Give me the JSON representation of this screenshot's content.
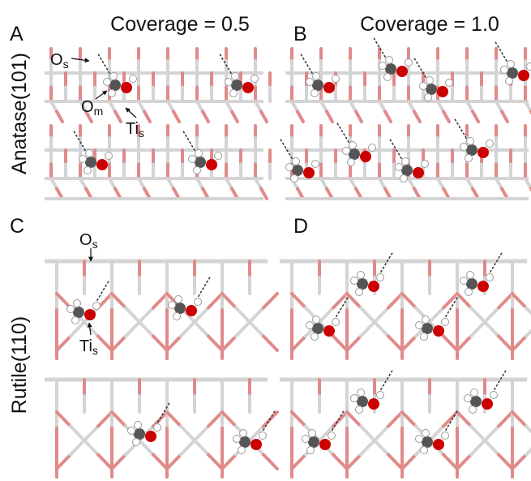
{
  "panels": [
    {
      "letter": "A",
      "title": "Coverage = 0.5",
      "row_label": "Anatase(101)",
      "labels": [
        {
          "base": "O",
          "sub": "s"
        },
        {
          "base": "O",
          "sub": "m"
        },
        {
          "base": "Ti",
          "sub": "s"
        }
      ]
    },
    {
      "letter": "B",
      "title": "Coverage = 1.0"
    },
    {
      "letter": "C",
      "row_label": "Rutile(110)",
      "labels": [
        {
          "base": "O",
          "sub": "s"
        },
        {
          "base": "Ti",
          "sub": "s"
        }
      ]
    },
    {
      "letter": "D"
    }
  ]
}
